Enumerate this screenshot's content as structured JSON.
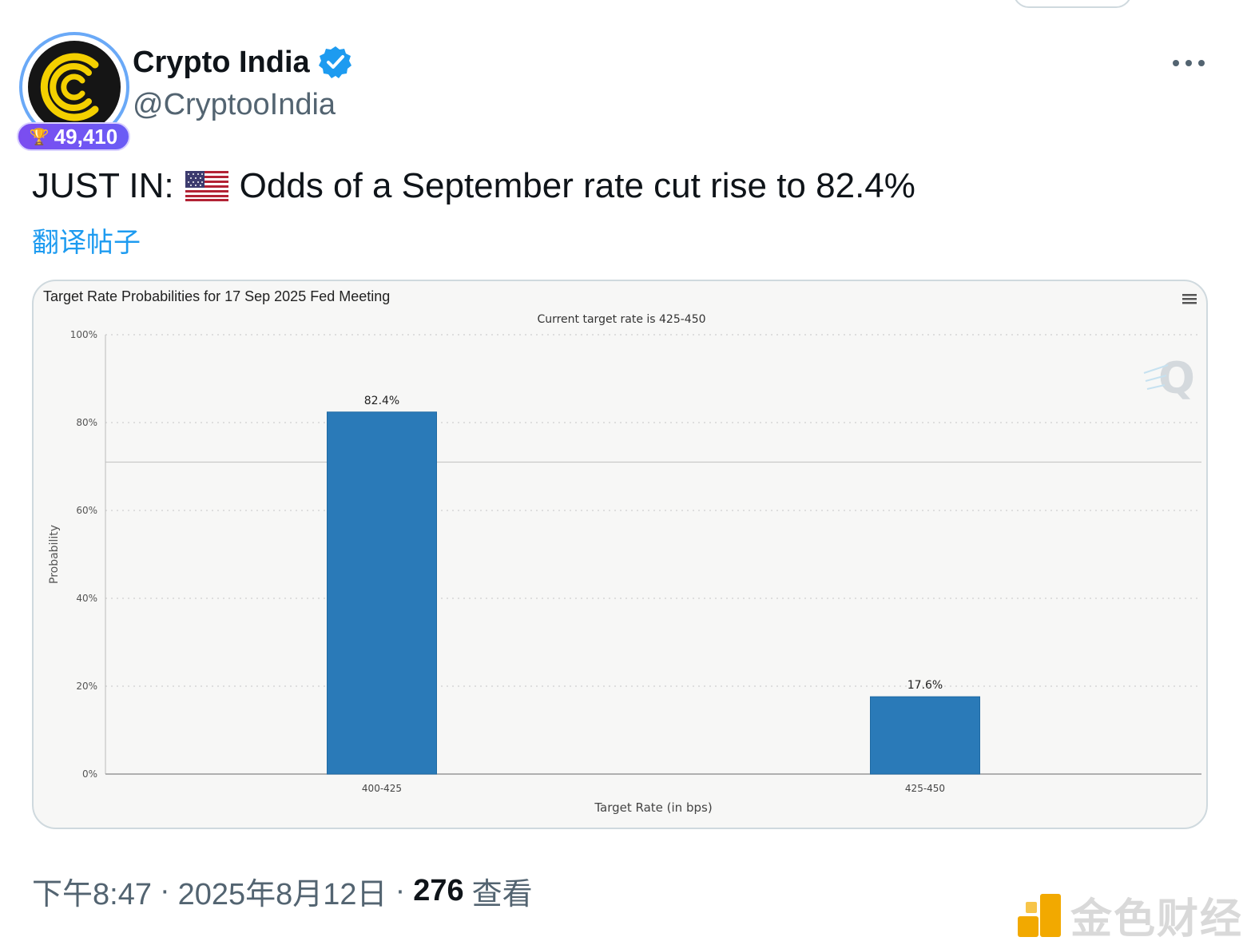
{
  "account": {
    "display_name": "Crypto India",
    "handle": "@CryptooIndia",
    "score": "49,410",
    "verified": true,
    "avatar_colors": {
      "ring": "#6aa9f7",
      "bg": "#151515",
      "logo": "#f4d000"
    },
    "score_badge_color": "#7b4df0"
  },
  "post": {
    "text_before_flag": "JUST IN:",
    "flag": "us-flag-icon",
    "text_after_flag": "Odds of a September rate cut rise to 82.4%",
    "translate_label": "翻译帖子"
  },
  "chart_data": {
    "type": "bar",
    "title": "Target Rate Probabilities for 17 Sep 2025 Fed Meeting",
    "subtitle": "Current target rate is 425-450",
    "categories": [
      "400-425",
      "425-450"
    ],
    "values": [
      82.4,
      17.6
    ],
    "data_labels": [
      "82.4%",
      "17.6%"
    ],
    "ylabel": "Probability",
    "xlabel": "Target Rate (in bps)",
    "ylim": [
      0,
      100
    ],
    "yticks": [
      0,
      20,
      40,
      60,
      80,
      100
    ],
    "ytick_labels": [
      "0%",
      "20%",
      "40%",
      "60%",
      "80%",
      "100%"
    ],
    "grid": true,
    "reference_line": 71,
    "bar_color": "#2a7ab8",
    "menu_icon": "hamburger-menu-icon",
    "watermark_icon": "quikstrike-logo-icon"
  },
  "meta": {
    "time": "下午8:47",
    "separator": "·",
    "date": "2025年8月12日",
    "views_count": "276",
    "views_label": "查看"
  },
  "watermark": {
    "text": "金色财经",
    "icon": "jinse-logo-icon",
    "color": "#f2a900"
  }
}
